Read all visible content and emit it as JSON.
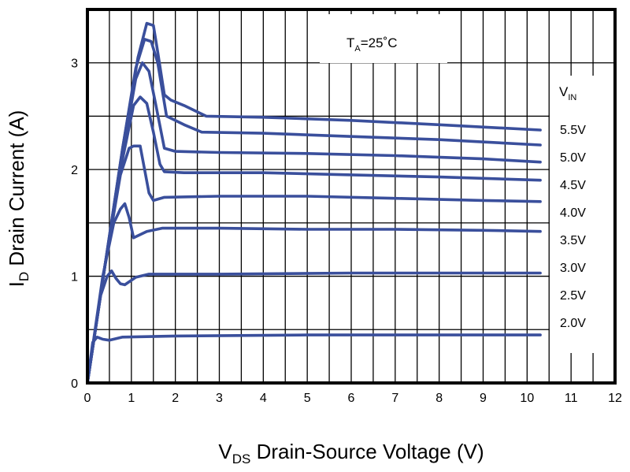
{
  "chart_data": {
    "type": "line",
    "annotation": {
      "main": "T",
      "sub": "A",
      "suffix": "=25˚C"
    },
    "legend_title": {
      "main": "V",
      "sub": "IN"
    },
    "xlabel": {
      "main": "V",
      "sub": "DS",
      "rest": " Drain-Source Voltage (V)"
    },
    "ylabel": {
      "main": "I",
      "sub": "D",
      "rest": " Drain Current (A)"
    },
    "xlim": [
      0,
      12
    ],
    "ylim": [
      0,
      3.5
    ],
    "x_ticks": [
      0,
      1,
      2,
      3,
      4,
      5,
      6,
      7,
      8,
      9,
      10,
      11,
      12
    ],
    "y_ticks": [
      0,
      1,
      2,
      3
    ],
    "grid": true,
    "line_color": "#3a4f9c",
    "series": [
      {
        "name": "5.5V",
        "x": [
          0,
          0.4,
          0.8,
          1.15,
          1.35,
          1.5,
          1.6,
          1.75,
          1.9,
          2.2,
          2.7,
          4,
          6,
          8,
          10.3
        ],
        "y": [
          0,
          1.1,
          2.2,
          3.05,
          3.37,
          3.35,
          3.1,
          2.7,
          2.65,
          2.6,
          2.5,
          2.49,
          2.46,
          2.42,
          2.37
        ]
      },
      {
        "name": "",
        "x": [
          0,
          0.4,
          0.8,
          1.1,
          1.3,
          1.45,
          1.6,
          1.8,
          2.2,
          2.6,
          4,
          6,
          8,
          10.3
        ],
        "y": [
          0,
          1.1,
          2.2,
          2.95,
          3.22,
          3.2,
          3.0,
          2.5,
          2.42,
          2.35,
          2.34,
          2.31,
          2.28,
          2.23
        ]
      },
      {
        "name": "5.0V",
        "x": [
          0,
          0.4,
          0.8,
          1.1,
          1.25,
          1.4,
          1.55,
          1.75,
          2.0,
          3,
          5,
          7,
          9,
          10.3
        ],
        "y": [
          0,
          1.1,
          2.15,
          2.85,
          3.0,
          2.92,
          2.62,
          2.2,
          2.17,
          2.16,
          2.15,
          2.13,
          2.1,
          2.07
        ]
      },
      {
        "name": "4.5V",
        "x": [
          0,
          0.4,
          0.8,
          1.05,
          1.2,
          1.35,
          1.5,
          1.65,
          1.75,
          2.2,
          4,
          6,
          8,
          10.3
        ],
        "y": [
          0,
          1.1,
          2.1,
          2.6,
          2.68,
          2.62,
          2.35,
          2.05,
          1.98,
          1.97,
          1.97,
          1.95,
          1.93,
          1.9
        ]
      },
      {
        "name": "4.0V",
        "x": [
          0,
          0.4,
          0.75,
          0.95,
          1.05,
          1.2,
          1.3,
          1.4,
          1.5,
          1.75,
          3,
          5,
          7,
          9,
          10.3
        ],
        "y": [
          0,
          1.1,
          1.95,
          2.2,
          2.22,
          2.22,
          2.0,
          1.78,
          1.71,
          1.74,
          1.75,
          1.75,
          1.73,
          1.71,
          1.7
        ]
      },
      {
        "name": "3.5V",
        "x": [
          0,
          0.35,
          0.6,
          0.75,
          0.85,
          0.95,
          1.05,
          1.35,
          1.7,
          3,
          5,
          7,
          9,
          10.3
        ],
        "y": [
          0,
          1.0,
          1.5,
          1.63,
          1.68,
          1.55,
          1.36,
          1.42,
          1.45,
          1.45,
          1.44,
          1.44,
          1.43,
          1.42
        ]
      },
      {
        "name": "3.0V",
        "x": [
          0,
          0.3,
          0.45,
          0.55,
          0.65,
          0.75,
          0.85,
          1.1,
          1.4,
          3,
          6,
          10.3
        ],
        "y": [
          0,
          0.82,
          1.0,
          1.05,
          0.98,
          0.93,
          0.92,
          0.99,
          1.02,
          1.02,
          1.03,
          1.03
        ]
      },
      {
        "name": "2.5V",
        "x": [],
        "y": []
      },
      {
        "name": "2.0V",
        "x": [
          0,
          0.12,
          0.22,
          0.35,
          0.5,
          0.8,
          2,
          5,
          8,
          10.3
        ],
        "y": [
          0,
          0.38,
          0.43,
          0.41,
          0.4,
          0.43,
          0.44,
          0.45,
          0.45,
          0.45
        ]
      }
    ]
  }
}
